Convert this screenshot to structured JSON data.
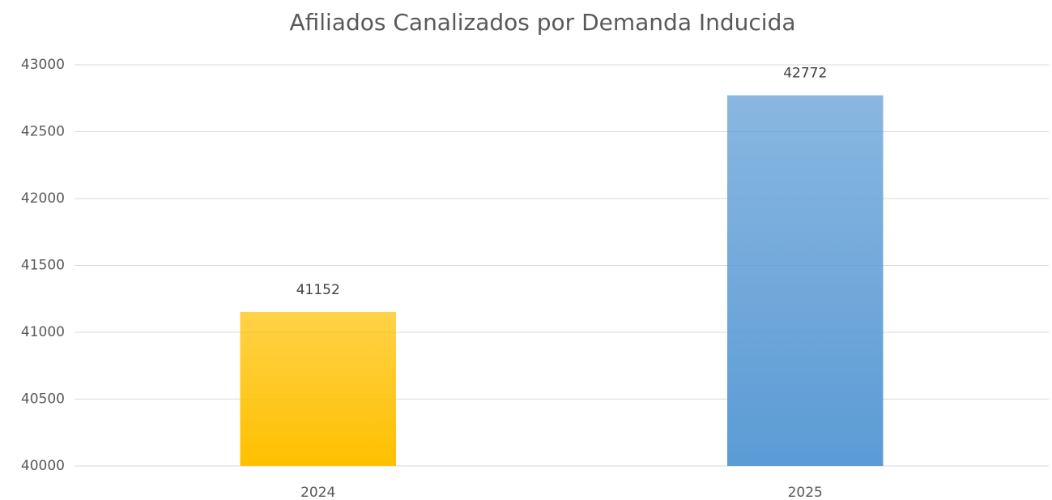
{
  "chart_data": {
    "type": "bar",
    "title": "Afiliados Canalizados por Demanda Inducida",
    "categories": [
      "2024",
      "2025"
    ],
    "values": [
      41152,
      42772
    ],
    "colors": [
      "#ffc000",
      "#5b9bd5"
    ],
    "ylim": [
      40000,
      43000
    ],
    "yticks": [
      40000,
      40500,
      41000,
      41500,
      42000,
      42500,
      43000
    ],
    "grid": true
  }
}
